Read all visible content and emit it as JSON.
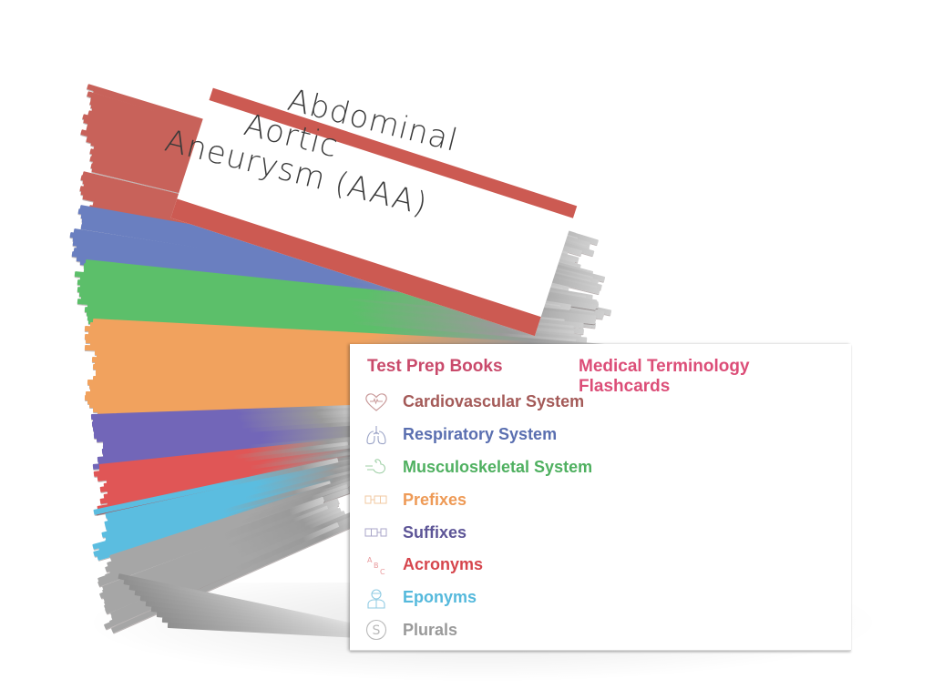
{
  "top_card": {
    "title_lines": [
      "Abdominal",
      "Aortic",
      "Aneurysm (AAA)"
    ],
    "accent_color": "#cc5a52"
  },
  "front_card": {
    "brand": "Test Prep Books",
    "title": "Medical Terminology Flashcards",
    "brand_color": "#c94a6b",
    "title_color": "#dc4e78",
    "categories": [
      {
        "label": "Cardiovascular System",
        "icon": "heart-ecg-icon",
        "color": "#a45a58"
      },
      {
        "label": "Respiratory System",
        "icon": "lungs-icon",
        "color": "#5a6fb0"
      },
      {
        "label": "Musculoskeletal System",
        "icon": "flexed-arm-icon",
        "color": "#4fb060"
      },
      {
        "label": "Prefixes",
        "icon": "prefix-blocks-icon",
        "color": "#ee9a56"
      },
      {
        "label": "Suffixes",
        "icon": "suffix-blocks-icon",
        "color": "#5d5597"
      },
      {
        "label": "Acronyms",
        "icon": "abc-letters-icon",
        "color": "#d6464d"
      },
      {
        "label": "Eponyms",
        "icon": "person-icon",
        "color": "#55b9dc"
      },
      {
        "label": "Plurals",
        "icon": "letter-s-circle-icon",
        "color": "#9a9a9a"
      }
    ]
  },
  "stack_colors": [
    "#c8625a",
    "#6a7fc0",
    "#5cbf6a",
    "#f1a25e",
    "#7266b8",
    "#e05656",
    "#5bbde0",
    "#a6a6a6"
  ]
}
